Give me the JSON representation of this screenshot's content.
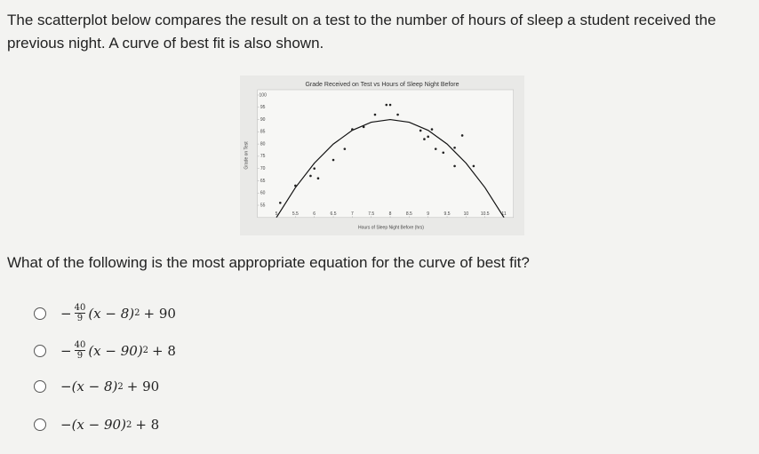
{
  "question": {
    "intro": "The scatterplot below compares the result on a test to the number of hours of sleep a student received the previous night. A curve of best fit is also shown.",
    "prompt": "What of the following is the most appropriate equation for the curve of best fit?",
    "options": [
      {
        "sign": "−",
        "num": "40",
        "den": "9",
        "base": "(x − 8)",
        "exp": "2",
        "tail": "+ 90"
      },
      {
        "sign": "−",
        "num": "40",
        "den": "9",
        "base": "(x − 90)",
        "exp": "2",
        "tail": "+ 8"
      },
      {
        "sign": "−",
        "base": "(x − 8)",
        "exp": "2",
        "tail": "+ 90"
      },
      {
        "sign": "−",
        "base": "(x − 90)",
        "exp": "2",
        "tail": "+ 8"
      }
    ]
  },
  "chart_data": {
    "type": "scatter",
    "title": "Grade Received on Test vs Hours of Sleep Night Before",
    "x_label": "Hours of Sleep Night Before (hrs)",
    "y_label": "Grade on Test",
    "x": [
      5.1,
      5.5,
      5.9,
      6.0,
      6.1,
      6.5,
      6.8,
      7.0,
      7.3,
      7.6,
      7.9,
      8.0,
      8.2,
      8.8,
      8.9,
      9.0,
      9.1,
      9.2,
      9.4,
      9.7,
      9.9,
      9.7,
      10.2
    ],
    "values": [
      56,
      63,
      67,
      70,
      66,
      73.5,
      78,
      86,
      87,
      92,
      96,
      96,
      92,
      85.5,
      82,
      83,
      86,
      78,
      76.5,
      78.5,
      83.5,
      71,
      71
    ],
    "color": "#222222",
    "curve": {
      "color": "#111111",
      "x": [
        5,
        5.5,
        6,
        6.5,
        7,
        7.5,
        8,
        8.5,
        9,
        9.5,
        10,
        10.5,
        11
      ],
      "values": [
        50,
        62.2,
        72.2,
        80,
        85.6,
        88.9,
        90,
        88.9,
        85.6,
        80,
        72.2,
        62.2,
        50
      ]
    },
    "xlim": [
      4.5,
      11.25
    ],
    "ylim": [
      50,
      100
    ],
    "xticks": [
      5,
      5.5,
      6,
      6.5,
      7,
      7.5,
      8,
      8.5,
      9,
      9.5,
      10,
      10.5,
      11
    ],
    "yticks": [
      55,
      60,
      65,
      70,
      75,
      80,
      85,
      90,
      95,
      100
    ],
    "grid": false
  }
}
